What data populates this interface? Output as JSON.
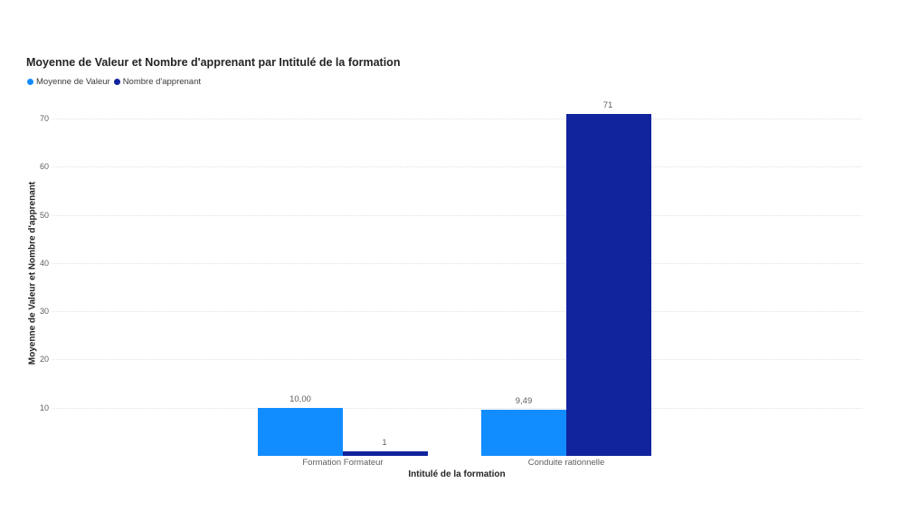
{
  "title": "Moyenne de Valeur et Nombre d'apprenant par Intitulé de la formation",
  "legend": [
    {
      "label": "Moyenne de Valeur",
      "color": "#118DFF"
    },
    {
      "label": "Nombre d'apprenant",
      "color": "#12239E"
    }
  ],
  "chart_data": {
    "type": "bar",
    "title": "Moyenne de Valeur et Nombre d'apprenant par Intitulé de la formation",
    "categories": [
      "Formation Formateur",
      "Conduite rationnelle"
    ],
    "series": [
      {
        "name": "Moyenne de Valeur",
        "color": "#118DFF",
        "values": [
          10.0,
          9.49
        ],
        "labels": [
          "10,00",
          "9,49"
        ]
      },
      {
        "name": "Nombre d'apprenant",
        "color": "#12239E",
        "values": [
          1,
          71
        ],
        "labels": [
          "1",
          "71"
        ]
      }
    ],
    "xlabel": "Intitulé de la formation",
    "ylabel": "Moyenne de Valeur et Nombre d'apprenant",
    "y_ticks": [
      10,
      20,
      30,
      40,
      50,
      60,
      70
    ],
    "ylim": [
      0,
      75
    ],
    "grid": "dotted-horizontal",
    "legend_position": "top-left",
    "background": "#ffffff",
    "gridline_color": "#e1e1e1"
  }
}
